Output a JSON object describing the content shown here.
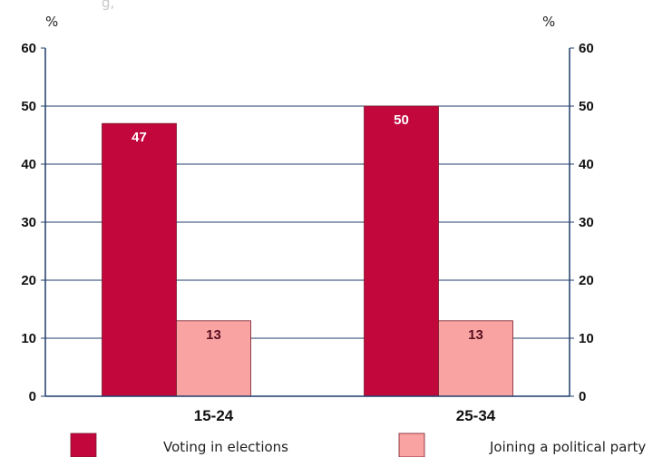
{
  "header_fragment": "g,",
  "chart_data": {
    "type": "bar",
    "y_unit_left": "%",
    "y_unit_right": "%",
    "categories": [
      "15-24",
      "25-34"
    ],
    "series": [
      {
        "name": "Voting in elections",
        "values": [
          47,
          50
        ],
        "color": "#c2073d",
        "label_color": "#ffffff"
      },
      {
        "name": "Joining a political party",
        "values": [
          13,
          13
        ],
        "color": "#f9a3a3",
        "label_color": "#5a1020"
      }
    ],
    "ylim": [
      0,
      60
    ],
    "yticks": [
      "0",
      "10",
      "20",
      "30",
      "40",
      "50",
      "60"
    ],
    "grid": true,
    "legend_position": "bottom",
    "axis_color": "#1f3d6b"
  }
}
